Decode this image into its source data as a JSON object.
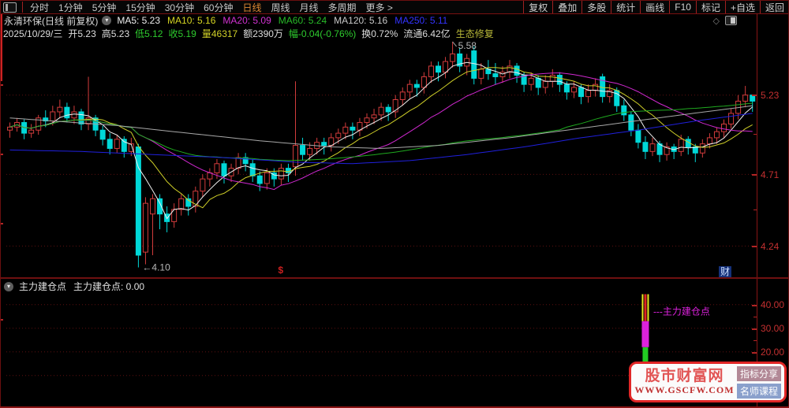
{
  "icons": {
    "chevron_down": "▾",
    "diamond": "◇"
  },
  "menubar": {
    "items": [
      "分时",
      "1分钟",
      "5分钟",
      "15分钟",
      "30分钟",
      "60分钟",
      "日线",
      "周线",
      "月线",
      "多周期",
      "更多 >"
    ],
    "active_item": "日线",
    "toolbar": [
      "复权",
      "叠加",
      "多股",
      "统计",
      "画线",
      "F10",
      "标记",
      "+自选",
      "返回"
    ]
  },
  "header": {
    "title": "永清环保(日线 前复权)",
    "ma_labels": [
      {
        "label": "MA5: 5.23",
        "color": "#eeeeee"
      },
      {
        "label": "MA10: 5.16",
        "color": "#d6d622"
      },
      {
        "label": "MA20: 5.09",
        "color": "#d232d2"
      },
      {
        "label": "MA60: 5.24",
        "color": "#28bb28"
      },
      {
        "label": "MA120: 5.16",
        "color": "#c8c8c8"
      },
      {
        "label": "MA250: 5.11",
        "color": "#3333ff"
      }
    ]
  },
  "info_bar": {
    "items": [
      {
        "text": "2025/10/29/三",
        "color": "#dddddd"
      },
      {
        "text": "开5.23",
        "color": "#dddddd"
      },
      {
        "text": "高5.23",
        "color": "#dddddd"
      },
      {
        "text": "低5.12",
        "color": "#2ecc2e"
      },
      {
        "text": "收5.19",
        "color": "#2ecc2e"
      },
      {
        "text": "量46317",
        "color": "#d0d028"
      },
      {
        "text": "额2390万",
        "color": "#dddddd"
      },
      {
        "text": "幅-0.04(-0.76%)",
        "color": "#2ecc2e"
      },
      {
        "text": "换0.72%",
        "color": "#dddddd"
      },
      {
        "text": "流通6.42亿",
        "color": "#dddddd"
      },
      {
        "text": "生态修复",
        "color": "#b8b838"
      }
    ]
  },
  "main_chart": {
    "y_axis_labels": [
      "5.23",
      "4.71",
      "4.24"
    ],
    "cai_badge": "财"
  },
  "sub_chart": {
    "title": "主力建仓点",
    "value_label": "主力建仓点: 0.00",
    "y_axis_labels": [
      "40.00",
      "30.00",
      "20.00"
    ],
    "line_label": "---主力建仓点"
  },
  "watermark": {
    "title": "股市财富网",
    "url": "WWW.GSCFW.COM",
    "badge1": "指标分享",
    "badge2": "名师课程",
    "badge1_bg": "#b28896",
    "badge2_bg": "#8aa0cc"
  },
  "chart_data": {
    "type": "candlestick",
    "title": "永清环保 日线 前复权",
    "x_axis": "trading days, ~105 bars ending 2025/10/29",
    "price_axis_ticks": [
      5.23,
      4.71,
      4.24
    ],
    "price_range": [
      4.03,
      5.59
    ],
    "grid": "dotted horizontal",
    "up_color": "#d23c3c",
    "down_color": "#00d8d8",
    "grid_color": "#5e1010",
    "last_bar": {
      "date": "2025/10/29/三",
      "open": 5.23,
      "high": 5.23,
      "low": 5.12,
      "close": 5.19,
      "volume": 46317,
      "amount": "2390万",
      "change": "-0.04(-0.76%)",
      "turnover": "0.72%",
      "float_shares": "6.42亿",
      "concept": "生态修复"
    },
    "annotations": {
      "high_index": 62,
      "high_text": "5.58",
      "low_index": 18,
      "low_text": "4.10",
      "marker_index": 38,
      "marker_text": "$"
    },
    "ohlc": [
      [
        5.0,
        5.05,
        4.95,
        5.02
      ],
      [
        5.02,
        5.08,
        4.99,
        5.05
      ],
      [
        5.05,
        5.07,
        4.94,
        4.98
      ],
      [
        4.98,
        5.04,
        4.95,
        5.0
      ],
      [
        5.0,
        5.1,
        4.97,
        5.08
      ],
      [
        5.08,
        5.13,
        5.02,
        5.06
      ],
      [
        5.06,
        5.16,
        5.03,
        5.12
      ],
      [
        5.12,
        5.2,
        5.08,
        5.15
      ],
      [
        5.15,
        5.18,
        5.05,
        5.08
      ],
      [
        5.08,
        5.16,
        5.04,
        5.12
      ],
      [
        5.12,
        5.14,
        5.0,
        5.04
      ],
      [
        5.04,
        5.35,
        5.0,
        5.08
      ],
      [
        5.08,
        5.1,
        4.96,
        5.0
      ],
      [
        5.0,
        5.03,
        4.9,
        4.94
      ],
      [
        4.94,
        4.98,
        4.84,
        4.88
      ],
      [
        4.88,
        4.97,
        4.85,
        4.94
      ],
      [
        4.94,
        4.96,
        4.82,
        4.86
      ],
      [
        4.86,
        4.95,
        4.83,
        4.91
      ],
      [
        4.89,
        4.91,
        4.1,
        4.18
      ],
      [
        4.2,
        4.56,
        4.12,
        4.52
      ],
      [
        4.45,
        4.58,
        4.18,
        4.55
      ],
      [
        4.55,
        4.58,
        4.35,
        4.45
      ],
      [
        4.45,
        4.5,
        4.33,
        4.4
      ],
      [
        4.4,
        4.52,
        4.36,
        4.48
      ],
      [
        4.48,
        4.58,
        4.44,
        4.55
      ],
      [
        4.55,
        4.58,
        4.44,
        4.5
      ],
      [
        4.5,
        4.63,
        4.46,
        4.6
      ],
      [
        4.6,
        4.71,
        4.56,
        4.68
      ],
      [
        4.68,
        4.75,
        4.63,
        4.72
      ],
      [
        4.72,
        4.81,
        4.68,
        4.78
      ],
      [
        4.78,
        4.8,
        4.65,
        4.7
      ],
      [
        4.7,
        4.78,
        4.66,
        4.75
      ],
      [
        4.75,
        4.85,
        4.71,
        4.82
      ],
      [
        4.82,
        4.85,
        4.73,
        4.78
      ],
      [
        4.78,
        4.81,
        4.66,
        4.7
      ],
      [
        4.7,
        4.73,
        4.6,
        4.65
      ],
      [
        4.65,
        4.75,
        4.61,
        4.72
      ],
      [
        4.72,
        4.75,
        4.63,
        4.68
      ],
      [
        4.68,
        4.78,
        4.64,
        4.75
      ],
      [
        4.75,
        4.78,
        4.66,
        4.72
      ],
      [
        4.76,
        5.32,
        4.7,
        4.9
      ],
      [
        4.9,
        4.95,
        4.8,
        4.84
      ],
      [
        4.84,
        4.92,
        4.8,
        4.88
      ],
      [
        4.88,
        4.95,
        4.84,
        4.92
      ],
      [
        4.92,
        4.95,
        4.84,
        4.9
      ],
      [
        4.9,
        4.98,
        4.86,
        4.95
      ],
      [
        4.95,
        5.01,
        4.91,
        4.98
      ],
      [
        4.98,
        5.05,
        4.94,
        5.02
      ],
      [
        5.02,
        5.05,
        4.94,
        5.0
      ],
      [
        5.0,
        5.08,
        4.96,
        5.05
      ],
      [
        5.05,
        5.11,
        5.01,
        5.08
      ],
      [
        5.08,
        5.14,
        5.04,
        5.1
      ],
      [
        5.1,
        5.18,
        5.06,
        5.15
      ],
      [
        5.15,
        5.17,
        5.06,
        5.12
      ],
      [
        5.12,
        5.23,
        5.08,
        5.2
      ],
      [
        5.2,
        5.28,
        5.16,
        5.25
      ],
      [
        5.25,
        5.33,
        5.21,
        5.3
      ],
      [
        5.3,
        5.33,
        5.22,
        5.28
      ],
      [
        5.28,
        5.38,
        5.24,
        5.35
      ],
      [
        5.35,
        5.45,
        5.31,
        5.42
      ],
      [
        5.42,
        5.45,
        5.32,
        5.38
      ],
      [
        5.38,
        5.48,
        5.34,
        5.45
      ],
      [
        5.45,
        5.58,
        5.41,
        5.5
      ],
      [
        5.5,
        5.54,
        5.38,
        5.42
      ],
      [
        5.42,
        5.5,
        5.36,
        5.47
      ],
      [
        5.52,
        5.55,
        5.3,
        5.34
      ],
      [
        5.34,
        5.44,
        5.3,
        5.4
      ],
      [
        5.4,
        5.46,
        5.33,
        5.37
      ],
      [
        5.37,
        5.44,
        5.3,
        5.35
      ],
      [
        5.35,
        5.42,
        5.31,
        5.38
      ],
      [
        5.38,
        5.46,
        5.34,
        5.42
      ],
      [
        5.42,
        5.44,
        5.31,
        5.36
      ],
      [
        5.36,
        5.38,
        5.25,
        5.3
      ],
      [
        5.3,
        5.38,
        5.26,
        5.34
      ],
      [
        5.34,
        5.36,
        5.23,
        5.28
      ],
      [
        5.28,
        5.36,
        5.24,
        5.32
      ],
      [
        5.32,
        5.4,
        5.28,
        5.36
      ],
      [
        5.36,
        5.38,
        5.25,
        5.3
      ],
      [
        5.3,
        5.32,
        5.2,
        5.25
      ],
      [
        5.25,
        5.32,
        5.21,
        5.28
      ],
      [
        5.28,
        5.3,
        5.17,
        5.22
      ],
      [
        5.22,
        5.3,
        5.18,
        5.26
      ],
      [
        5.26,
        5.34,
        5.22,
        5.3
      ],
      [
        5.35,
        5.37,
        5.18,
        5.22
      ],
      [
        5.22,
        5.3,
        5.18,
        5.26
      ],
      [
        5.26,
        5.28,
        5.12,
        5.16
      ],
      [
        5.16,
        5.2,
        5.06,
        5.1
      ],
      [
        5.1,
        5.12,
        4.96,
        5.0
      ],
      [
        5.0,
        5.04,
        4.88,
        4.92
      ],
      [
        4.92,
        4.96,
        4.81,
        4.86
      ],
      [
        4.86,
        4.95,
        4.83,
        4.91
      ],
      [
        4.91,
        4.93,
        4.79,
        4.84
      ],
      [
        4.84,
        4.92,
        4.8,
        4.89
      ],
      [
        4.89,
        4.91,
        4.81,
        4.86
      ],
      [
        4.86,
        4.97,
        4.83,
        4.94
      ],
      [
        4.94,
        4.96,
        4.84,
        4.89
      ],
      [
        4.89,
        4.91,
        4.79,
        4.85
      ],
      [
        4.85,
        4.94,
        4.82,
        4.91
      ],
      [
        4.91,
        4.98,
        4.88,
        4.95
      ],
      [
        4.95,
        5.02,
        4.91,
        4.99
      ],
      [
        4.99,
        5.07,
        4.95,
        5.04
      ],
      [
        5.04,
        5.14,
        5.01,
        5.11
      ],
      [
        5.11,
        5.23,
        5.07,
        5.19
      ],
      [
        5.19,
        5.29,
        5.15,
        5.23
      ],
      [
        5.23,
        5.23,
        5.12,
        5.19
      ]
    ],
    "moving_averages": {
      "MA5": {
        "window": 5,
        "value": 5.23,
        "color": "#f0f0f0"
      },
      "MA10": {
        "window": 10,
        "value": 5.16,
        "color": "#cfcf28"
      },
      "MA20": {
        "window": 20,
        "value": 5.09,
        "color": "#cf28cf"
      },
      "MA60": {
        "window": 60,
        "value": 5.24,
        "color": "#1faa1f"
      },
      "MA120": {
        "window": 120,
        "value": 5.16,
        "color": "#a8a8a8",
        "points": [
          [
            0,
            5.08
          ],
          [
            15,
            5.03
          ],
          [
            25,
            4.98
          ],
          [
            35,
            4.93
          ],
          [
            45,
            4.89
          ],
          [
            52,
            4.88
          ],
          [
            60,
            4.9
          ],
          [
            70,
            4.95
          ],
          [
            78,
            5.0
          ],
          [
            86,
            5.05
          ],
          [
            94,
            5.1
          ],
          [
            104,
            5.16
          ]
        ]
      },
      "MA250": {
        "window": 250,
        "value": 5.11,
        "color": "#2020dd",
        "points": [
          [
            0,
            4.87
          ],
          [
            10,
            4.86
          ],
          [
            20,
            4.84
          ],
          [
            30,
            4.82
          ],
          [
            40,
            4.79
          ],
          [
            48,
            4.78
          ],
          [
            56,
            4.8
          ],
          [
            64,
            4.84
          ],
          [
            72,
            4.89
          ],
          [
            80,
            4.95
          ],
          [
            88,
            5.0
          ],
          [
            96,
            5.06
          ],
          [
            104,
            5.11
          ]
        ]
      }
    },
    "sub_indicator": {
      "type": "bar",
      "name": "主力建仓点",
      "current_value": 0.0,
      "y_ticks": [
        40,
        30,
        20,
        10
      ],
      "y_range": [
        0,
        45
      ],
      "line_label": "---主力建仓点",
      "label_color": "#dd22dd",
      "signal_bar": {
        "index": 89,
        "segments": [
          {
            "from": 0,
            "to": 22,
            "color": "#22cc22",
            "style": "solid"
          },
          {
            "from": 22,
            "to": 33,
            "color": "#dd22dd",
            "style": "solid"
          },
          {
            "from": 33,
            "to": 45,
            "color": "#e8e820",
            "style": "striped-yellow-red",
            "stripe_color": "#dd2222"
          }
        ]
      }
    }
  }
}
